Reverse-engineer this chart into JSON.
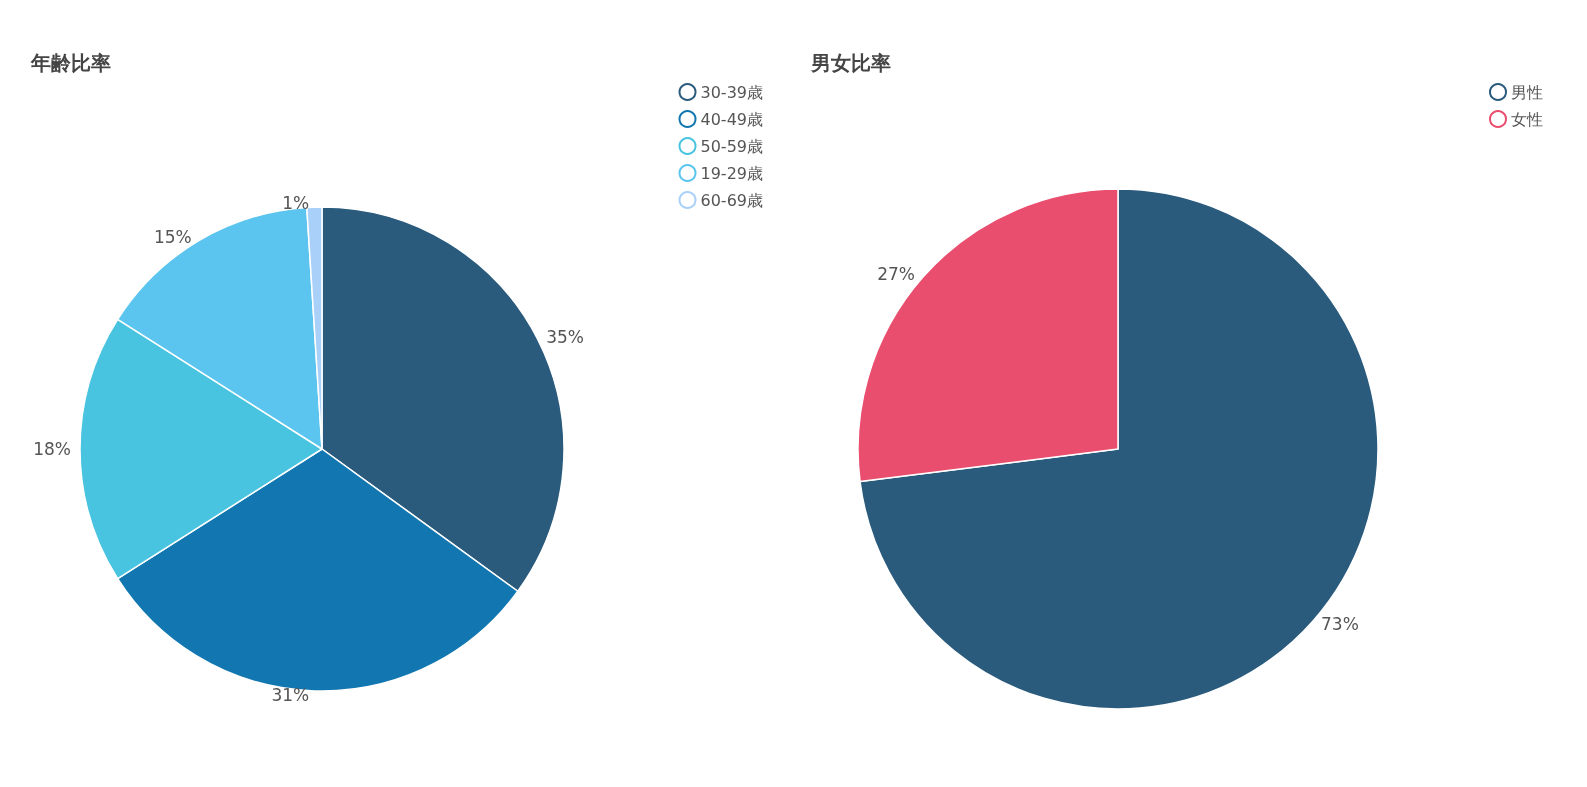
{
  "chart_data": [
    {
      "type": "pie",
      "title": "年齢比率",
      "categories": [
        "30-39歳",
        "40-49歳",
        "50-59歳",
        "19-29歳",
        "60-69歳"
      ],
      "values": [
        35,
        31,
        18,
        15,
        1
      ],
      "colors": [
        "#2a5a7c",
        "#1277b0",
        "#49c4e0",
        "#5bc5ef",
        "#a8d0f8"
      ],
      "value_labels": [
        "35%",
        "31%",
        "18%",
        "15%",
        "1%"
      ],
      "legend": "top right"
    },
    {
      "type": "pie",
      "title": "男女比率",
      "categories": [
        "男性",
        "女性"
      ],
      "values": [
        73,
        27
      ],
      "colors": [
        "#2a5a7c",
        "#e94e6f"
      ],
      "value_labels": [
        "73%",
        "27%"
      ],
      "legend": "top right"
    }
  ]
}
